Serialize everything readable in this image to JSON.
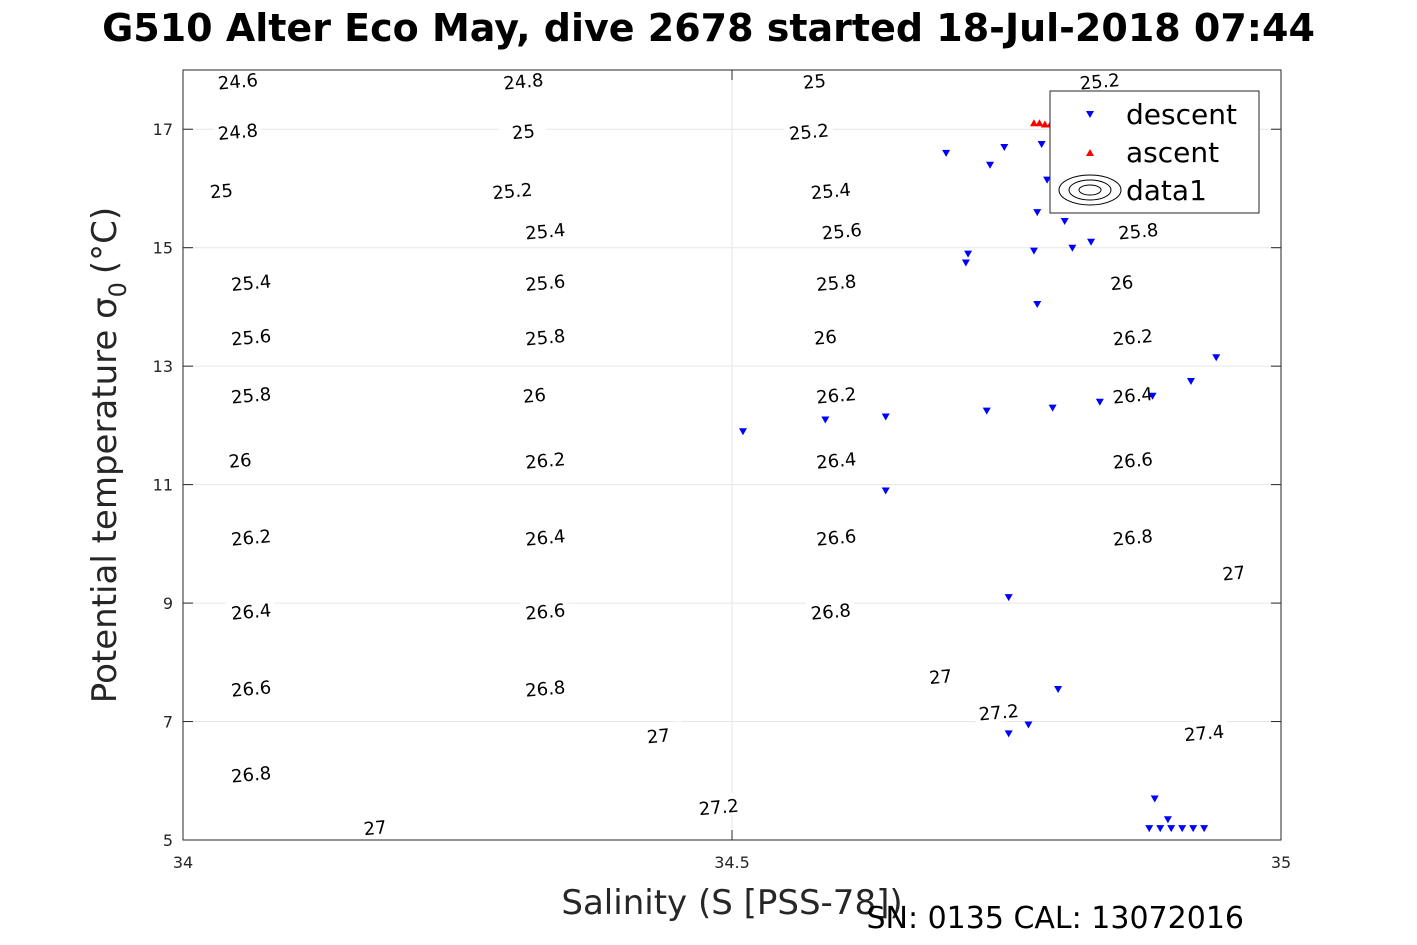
{
  "title": "G510 Alter Eco May, dive 2678 started 18-Jul-2018 07:44",
  "footer": "SN: 0135  CAL: 13072016",
  "chart_data": {
    "type": "scatter",
    "xlabel": "Salinity (S [PSS-78])",
    "ylabel_main": "Potential temperature σ",
    "ylabel_sub": "0",
    "ylabel_unit": "(°C)",
    "xlim": [
      34,
      35
    ],
    "ylim": [
      5,
      18
    ],
    "xticks": [
      34,
      34.5,
      35
    ],
    "xtick_labels": [
      "34",
      "34.5",
      "35"
    ],
    "yticks": [
      5,
      7,
      9,
      11,
      13,
      15,
      17
    ],
    "grid": true,
    "legend": {
      "placement": "top-right",
      "entries": [
        "descent",
        "ascent",
        "data1"
      ]
    },
    "contours": {
      "description_levels": [
        24.6,
        24.8,
        25.0,
        25.2,
        25.4,
        25.6,
        25.8,
        26.0,
        26.2,
        26.4,
        26.6,
        26.8,
        27.0,
        27.2,
        27.4
      ],
      "level_labels": [
        "24.6",
        "24.8",
        "25",
        "25.2",
        "25.4",
        "25.6",
        "25.8",
        "26",
        "26.2",
        "26.4",
        "26.6",
        "26.8",
        "27",
        "27.2",
        "27.4"
      ],
      "labels": [
        {
          "text": "24.6",
          "s": 34.05,
          "t": 17.8
        },
        {
          "text": "24.8",
          "s": 34.31,
          "t": 17.8
        },
        {
          "text": "25",
          "s": 34.575,
          "t": 17.8
        },
        {
          "text": "25.2",
          "s": 34.835,
          "t": 17.8
        },
        {
          "text": "24.8",
          "s": 34.05,
          "t": 16.95
        },
        {
          "text": "25",
          "s": 34.31,
          "t": 16.95
        },
        {
          "text": "25.2",
          "s": 34.57,
          "t": 16.95
        },
        {
          "text": "25",
          "s": 34.035,
          "t": 15.95
        },
        {
          "text": "25.2",
          "s": 34.3,
          "t": 15.95
        },
        {
          "text": "25.4",
          "s": 34.59,
          "t": 15.95
        },
        {
          "text": "25.4",
          "s": 34.33,
          "t": 15.27
        },
        {
          "text": "25.6",
          "s": 34.6,
          "t": 15.27
        },
        {
          "text": "25.8",
          "s": 34.87,
          "t": 15.27
        },
        {
          "text": "25.4",
          "s": 34.062,
          "t": 14.4
        },
        {
          "text": "25.6",
          "s": 34.33,
          "t": 14.4
        },
        {
          "text": "25.8",
          "s": 34.595,
          "t": 14.4
        },
        {
          "text": "26",
          "s": 34.855,
          "t": 14.4
        },
        {
          "text": "25.6",
          "s": 34.062,
          "t": 13.48
        },
        {
          "text": "25.8",
          "s": 34.33,
          "t": 13.48
        },
        {
          "text": "26",
          "s": 34.585,
          "t": 13.48
        },
        {
          "text": "26.2",
          "s": 34.865,
          "t": 13.48
        },
        {
          "text": "25.8",
          "s": 34.062,
          "t": 12.5
        },
        {
          "text": "26",
          "s": 34.32,
          "t": 12.5
        },
        {
          "text": "26.2",
          "s": 34.595,
          "t": 12.5
        },
        {
          "text": "26.4",
          "s": 34.865,
          "t": 12.5
        },
        {
          "text": "26",
          "s": 34.052,
          "t": 11.4
        },
        {
          "text": "26.2",
          "s": 34.33,
          "t": 11.4
        },
        {
          "text": "26.4",
          "s": 34.595,
          "t": 11.4
        },
        {
          "text": "26.6",
          "s": 34.865,
          "t": 11.4
        },
        {
          "text": "26.2",
          "s": 34.062,
          "t": 10.1
        },
        {
          "text": "26.4",
          "s": 34.33,
          "t": 10.1
        },
        {
          "text": "26.6",
          "s": 34.595,
          "t": 10.1
        },
        {
          "text": "26.8",
          "s": 34.865,
          "t": 10.1
        },
        {
          "text": "26.4",
          "s": 34.062,
          "t": 8.85
        },
        {
          "text": "26.6",
          "s": 34.33,
          "t": 8.85
        },
        {
          "text": "26.8",
          "s": 34.59,
          "t": 8.85
        },
        {
          "text": "27",
          "s": 34.957,
          "t": 9.5
        },
        {
          "text": "26.6",
          "s": 34.062,
          "t": 7.55
        },
        {
          "text": "26.8",
          "s": 34.33,
          "t": 7.55
        },
        {
          "text": "27",
          "s": 34.69,
          "t": 7.75
        },
        {
          "text": "26.8",
          "s": 34.062,
          "t": 6.1
        },
        {
          "text": "27",
          "s": 34.433,
          "t": 6.75
        },
        {
          "text": "27.2",
          "s": 34.743,
          "t": 7.15
        },
        {
          "text": "27.4",
          "s": 34.93,
          "t": 6.8
        },
        {
          "text": "27",
          "s": 34.175,
          "t": 5.2
        },
        {
          "text": "27.2",
          "s": 34.488,
          "t": 5.55
        }
      ]
    },
    "series": [
      {
        "name": "descent",
        "marker": "triangle-down",
        "color": "#0000ff",
        "points": [
          [
            34.695,
            16.6
          ],
          [
            34.735,
            16.4
          ],
          [
            34.748,
            16.7
          ],
          [
            34.782,
            16.75
          ],
          [
            34.787,
            16.15
          ],
          [
            34.778,
            15.6
          ],
          [
            34.803,
            15.45
          ],
          [
            34.81,
            15.0
          ],
          [
            34.827,
            15.1
          ],
          [
            34.775,
            14.95
          ],
          [
            34.715,
            14.9
          ],
          [
            34.713,
            14.75
          ],
          [
            34.778,
            14.05
          ],
          [
            34.51,
            11.9
          ],
          [
            34.585,
            12.1
          ],
          [
            34.64,
            12.15
          ],
          [
            34.732,
            12.25
          ],
          [
            34.792,
            12.3
          ],
          [
            34.835,
            12.4
          ],
          [
            34.883,
            12.5
          ],
          [
            34.918,
            12.75
          ],
          [
            34.941,
            13.15
          ],
          [
            34.64,
            10.9
          ],
          [
            34.752,
            9.1
          ],
          [
            34.797,
            7.55
          ],
          [
            34.77,
            6.95
          ],
          [
            34.752,
            6.8
          ],
          [
            34.885,
            5.7
          ],
          [
            34.897,
            5.35
          ],
          [
            34.89,
            5.2
          ],
          [
            34.9,
            5.2
          ],
          [
            34.91,
            5.2
          ],
          [
            34.92,
            5.2
          ],
          [
            34.93,
            5.2
          ],
          [
            34.88,
            5.2
          ]
        ]
      },
      {
        "name": "ascent",
        "marker": "triangle-up",
        "color": "#ff0000",
        "points": [
          [
            34.775,
            17.1
          ],
          [
            34.78,
            17.1
          ],
          [
            34.785,
            17.08
          ],
          [
            34.79,
            17.08
          ],
          [
            34.795,
            17.07
          ],
          [
            34.8,
            17.07
          ],
          [
            34.805,
            17.06
          ],
          [
            34.81,
            17.06
          ]
        ]
      }
    ]
  }
}
